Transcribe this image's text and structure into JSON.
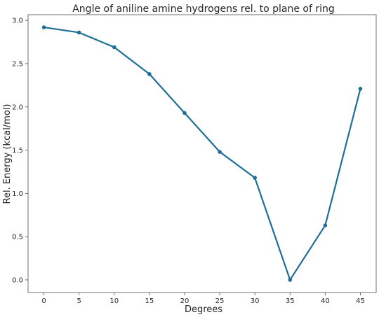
{
  "chart_data": {
    "type": "line",
    "title": "Angle of aniline amine hydrogens rel. to plane of ring",
    "xlabel": "Degrees",
    "ylabel": "Rel. Energy (kcal/mol)",
    "x": [
      0,
      5,
      10,
      15,
      20,
      25,
      30,
      35,
      40,
      45
    ],
    "series": [
      {
        "values": [
          2.92,
          2.86,
          2.69,
          2.38,
          1.93,
          1.48,
          1.18,
          0.0,
          0.63,
          2.21
        ],
        "color": "#1f6f95",
        "marker": "circle"
      }
    ],
    "xlim": [
      -2.25,
      47.25
    ],
    "ylim": [
      -0.146,
      3.066
    ],
    "xticks": [
      "0",
      "5",
      "10",
      "15",
      "20",
      "25",
      "30",
      "35",
      "40",
      "45"
    ],
    "yticks": [
      "0.0",
      "0.5",
      "1.0",
      "1.5",
      "2.0",
      "2.5",
      "3.0"
    ],
    "grid": false,
    "legend": "none"
  }
}
